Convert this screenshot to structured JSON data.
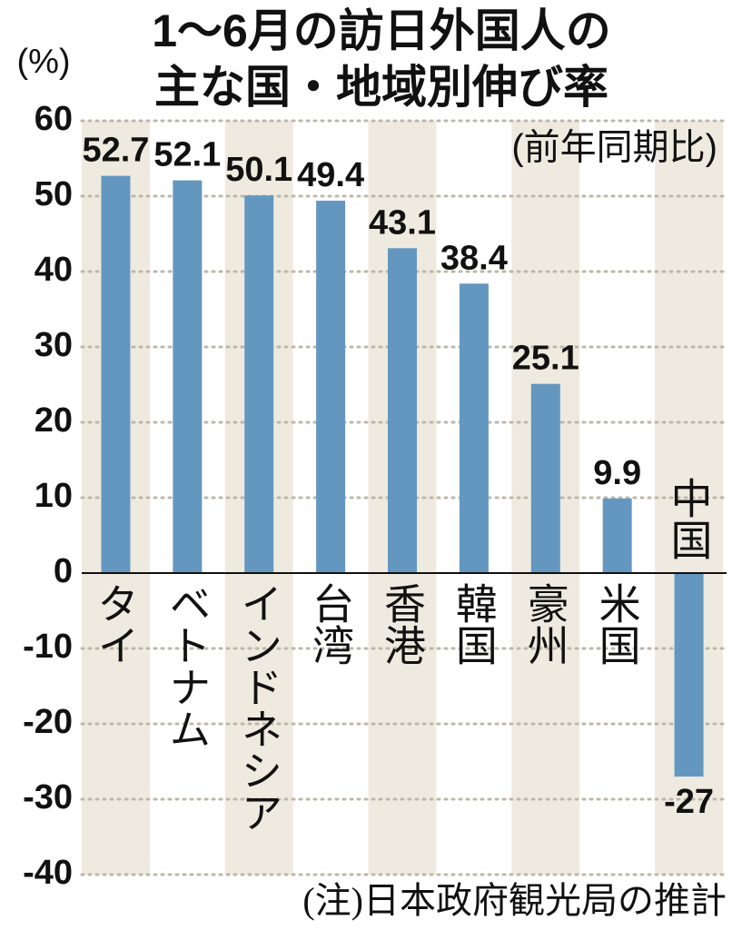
{
  "chart_data": {
    "type": "bar",
    "title": [
      "1〜6月の訪日外国人の",
      "主な国・地域別伸び率"
    ],
    "y_label": "(%)",
    "subtitle": "(前年同期比)",
    "note": "(注)日本政府観光局の推計",
    "categories": [
      "タイ",
      "ベトナム",
      "インドネシア",
      "台湾",
      "香港",
      "韓国",
      "豪州",
      "米国",
      "中国"
    ],
    "values": [
      52.7,
      52.1,
      50.1,
      49.4,
      43.1,
      38.4,
      25.1,
      9.9,
      -27
    ],
    "color": "#6497c0",
    "ylim": [
      -40,
      60
    ],
    "yticks": [
      -40,
      -30,
      -20,
      -10,
      0,
      10,
      20,
      30,
      40,
      50,
      60
    ],
    "grid": true
  }
}
